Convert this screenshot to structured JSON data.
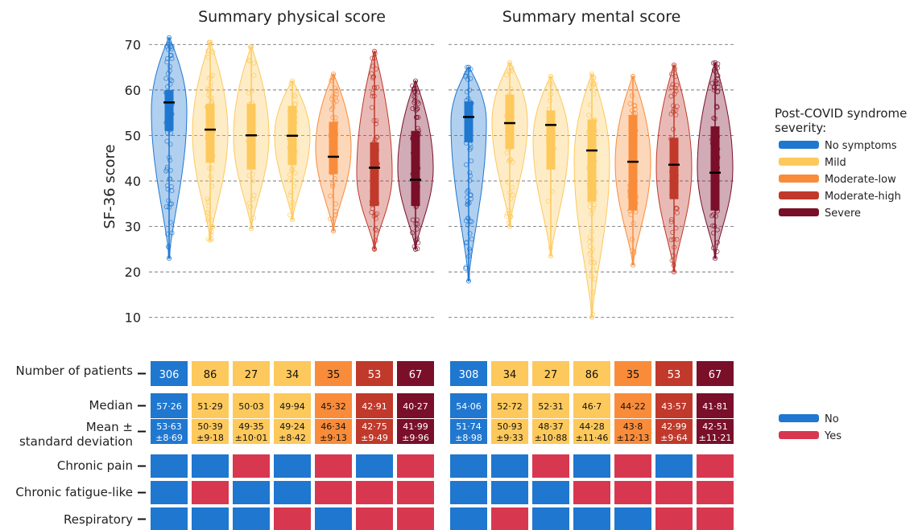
{
  "colors": {
    "No symptoms": "#1f77d0",
    "Mild": "#fdc95c",
    "Moderate-low": "#f98c3a",
    "Moderate-high": "#c0392b",
    "Severe": "#7a0f2a",
    "No": "#1f77d0",
    "Yes": "#d8384f"
  },
  "chart_data": {
    "type": "violin",
    "ylabel": "SF-36 score",
    "ylim": [
      8,
      72
    ],
    "yticks": [
      10,
      20,
      30,
      40,
      50,
      60,
      70
    ],
    "grid": true,
    "legend": {
      "title": "Post-COVID syndrome severity:",
      "placement": "right",
      "entries": [
        "No symptoms",
        "Mild",
        "Moderate-low",
        "Moderate-high",
        "Severe"
      ]
    },
    "binary_legend": {
      "entries": [
        "No",
        "Yes"
      ]
    },
    "row_labels": {
      "n": "Number of patients",
      "median": "Median",
      "mean": "Mean ± standard deviation",
      "pain": "Chronic pain",
      "fatigue": "Chronic fatigue-like",
      "resp": "Respiratory"
    },
    "panels": [
      {
        "title": "Summary physical score",
        "groups": [
          {
            "severity": "No symptoms",
            "n": "306",
            "median": "57·26",
            "mean": "53·63",
            "sd": "±8·69",
            "min": 23,
            "max": 71.5,
            "q1": 51,
            "q3": 60,
            "med": 57.26,
            "pain": "No",
            "fatigue": "No",
            "resp": "No"
          },
          {
            "severity": "Mild",
            "n": "86",
            "median": "51·29",
            "mean": "50·39",
            "sd": "±9·18",
            "min": 27,
            "max": 70.5,
            "q1": 44,
            "q3": 57,
            "med": 51.29,
            "pain": "No",
            "fatigue": "Yes",
            "resp": "No"
          },
          {
            "severity": "Mild",
            "n": "27",
            "median": "50·03",
            "mean": "49·35",
            "sd": "±10·01",
            "min": 29.5,
            "max": 69.5,
            "q1": 42.5,
            "q3": 57,
            "med": 50.03,
            "pain": "Yes",
            "fatigue": "No",
            "resp": "No"
          },
          {
            "severity": "Mild",
            "n": "34",
            "median": "49·94",
            "mean": "49·24",
            "sd": "±8·42",
            "min": 31.5,
            "max": 62,
            "q1": 43.5,
            "q3": 56.5,
            "med": 49.94,
            "pain": "No",
            "fatigue": "No",
            "resp": "Yes"
          },
          {
            "severity": "Moderate-low",
            "n": "35",
            "median": "45·32",
            "mean": "46·34",
            "sd": "±9·13",
            "min": 29,
            "max": 63.5,
            "q1": 41.5,
            "q3": 53,
            "med": 45.32,
            "pain": "Yes",
            "fatigue": "Yes",
            "resp": "No"
          },
          {
            "severity": "Moderate-high",
            "n": "53",
            "median": "42·91",
            "mean": "42·75",
            "sd": "±9·49",
            "min": 25,
            "max": 68.5,
            "q1": 34.5,
            "q3": 48.5,
            "med": 42.91,
            "pain": "No",
            "fatigue": "Yes",
            "resp": "Yes"
          },
          {
            "severity": "Severe",
            "n": "67",
            "median": "40·27",
            "mean": "41·99",
            "sd": "±9·96",
            "min": 25,
            "max": 62,
            "q1": 34.5,
            "q3": 51,
            "med": 40.27,
            "pain": "Yes",
            "fatigue": "Yes",
            "resp": "Yes"
          }
        ]
      },
      {
        "title": "Summary mental score",
        "groups": [
          {
            "severity": "No symptoms",
            "n": "308",
            "median": "54·06",
            "mean": "51·74",
            "sd": "±8·98",
            "min": 18,
            "max": 65,
            "q1": 48.5,
            "q3": 57.5,
            "med": 54.06,
            "pain": "No",
            "fatigue": "No",
            "resp": "No"
          },
          {
            "severity": "Mild",
            "n": "34",
            "median": "52·72",
            "mean": "50·93",
            "sd": "±9·33",
            "min": 30,
            "max": 66,
            "q1": 47,
            "q3": 59,
            "med": 52.72,
            "pain": "No",
            "fatigue": "No",
            "resp": "Yes"
          },
          {
            "severity": "Mild",
            "n": "27",
            "median": "52·31",
            "mean": "48·37",
            "sd": "±10·88",
            "min": 23.5,
            "max": 63,
            "q1": 42.5,
            "q3": 55.5,
            "med": 52.31,
            "pain": "Yes",
            "fatigue": "No",
            "resp": "No"
          },
          {
            "severity": "Mild",
            "n": "86",
            "median": "46·7",
            "mean": "44·28",
            "sd": "±11·46",
            "min": 10,
            "max": 63.5,
            "q1": 35.5,
            "q3": 53.5,
            "med": 46.7,
            "pain": "No",
            "fatigue": "Yes",
            "resp": "No"
          },
          {
            "severity": "Moderate-low",
            "n": "35",
            "median": "44·22",
            "mean": "43·8",
            "sd": "±12·13",
            "min": 21.5,
            "max": 63,
            "q1": 33.5,
            "q3": 54.5,
            "med": 44.22,
            "pain": "Yes",
            "fatigue": "Yes",
            "resp": "No"
          },
          {
            "severity": "Moderate-high",
            "n": "53",
            "median": "43·57",
            "mean": "42·99",
            "sd": "±9·64",
            "min": 20,
            "max": 65.5,
            "q1": 36,
            "q3": 49.5,
            "med": 43.57,
            "pain": "No",
            "fatigue": "Yes",
            "resp": "Yes"
          },
          {
            "severity": "Severe",
            "n": "67",
            "median": "41·81",
            "mean": "42·51",
            "sd": "±11·21",
            "min": 23,
            "max": 66,
            "q1": 33.5,
            "q3": 52,
            "med": 41.81,
            "pain": "Yes",
            "fatigue": "Yes",
            "resp": "Yes"
          }
        ]
      }
    ]
  }
}
